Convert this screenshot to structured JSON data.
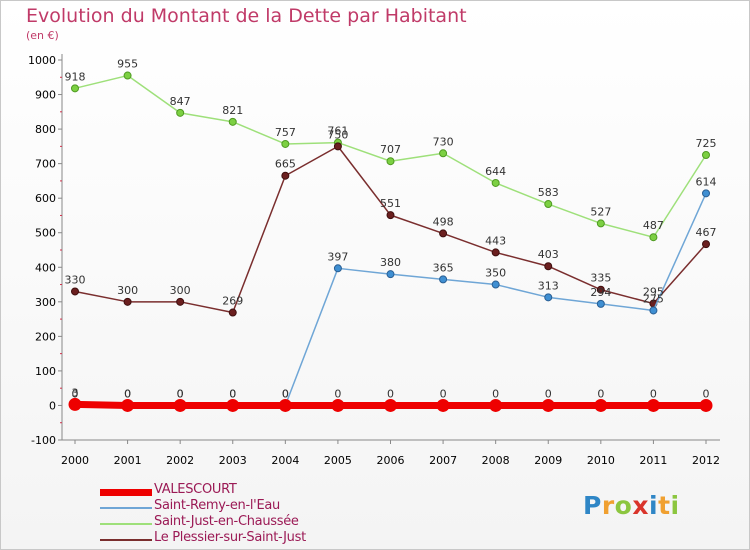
{
  "title": "Evolution du Montant de la Dette par Habitant",
  "subtitle": "(en €)",
  "brand": {
    "text": "Proxiti",
    "letters": [
      {
        "ch": "P",
        "color": "#2f86c6"
      },
      {
        "ch": "r",
        "color": "#f0a030"
      },
      {
        "ch": "o",
        "color": "#8cc63f"
      },
      {
        "ch": "x",
        "color": "#d9342b"
      },
      {
        "ch": "i",
        "color": "#2f86c6"
      },
      {
        "ch": "t",
        "color": "#f0a030"
      },
      {
        "ch": "i",
        "color": "#8cc63f"
      }
    ]
  },
  "chart_data": {
    "type": "line",
    "title": "Evolution du Montant de la Dette par Habitant",
    "ylabel": "(en €)",
    "ylim": [
      -100,
      1000
    ],
    "yticks": [
      -100,
      0,
      100,
      200,
      300,
      400,
      500,
      600,
      700,
      800,
      900,
      1000
    ],
    "x": [
      "2000",
      "2001",
      "2002",
      "2003",
      "2004",
      "2005",
      "2006",
      "2007",
      "2008",
      "2009",
      "2010",
      "2011",
      "2012"
    ],
    "grid": false,
    "legend_position": "bottom-left",
    "series": [
      {
        "name": "VALESCOURT",
        "color": "#ee0000",
        "values": [
          3,
          0,
          0,
          0,
          0,
          0,
          0,
          0,
          0,
          0,
          0,
          0,
          0
        ],
        "labels": [
          "3",
          "0",
          "0",
          "0",
          "0",
          "0",
          "0",
          "0",
          "0",
          "0",
          "0",
          "0",
          "0"
        ]
      },
      {
        "name": "Saint-Remy-en-l'Eau",
        "color": "#6fa6d6",
        "values": [
          0,
          0,
          0,
          0,
          0,
          397,
          380,
          365,
          350,
          313,
          294,
          275,
          614
        ],
        "labels": [
          "0",
          "0",
          "0",
          "0",
          "0",
          "397",
          "380",
          "365",
          "350",
          "313",
          "294",
          "275",
          "614"
        ]
      },
      {
        "name": "Saint-Just-en-Chaussée",
        "color": "#9ee07a",
        "values": [
          918,
          955,
          847,
          821,
          757,
          761,
          707,
          730,
          644,
          583,
          527,
          487,
          725
        ],
        "labels": [
          "918",
          "955",
          "847",
          "821",
          "757",
          "761",
          "707",
          "730",
          "644",
          "583",
          "527",
          "487",
          "725"
        ]
      },
      {
        "name": "Le Plessier-sur-Saint-Just",
        "color": "#7a2e2e",
        "values": [
          330,
          300,
          300,
          269,
          665,
          750,
          551,
          498,
          443,
          403,
          335,
          295,
          467
        ],
        "labels": [
          "330",
          "300",
          "300",
          "269",
          "665",
          "750",
          "551",
          "498",
          "443",
          "403",
          "335",
          "295",
          "467"
        ]
      }
    ]
  }
}
